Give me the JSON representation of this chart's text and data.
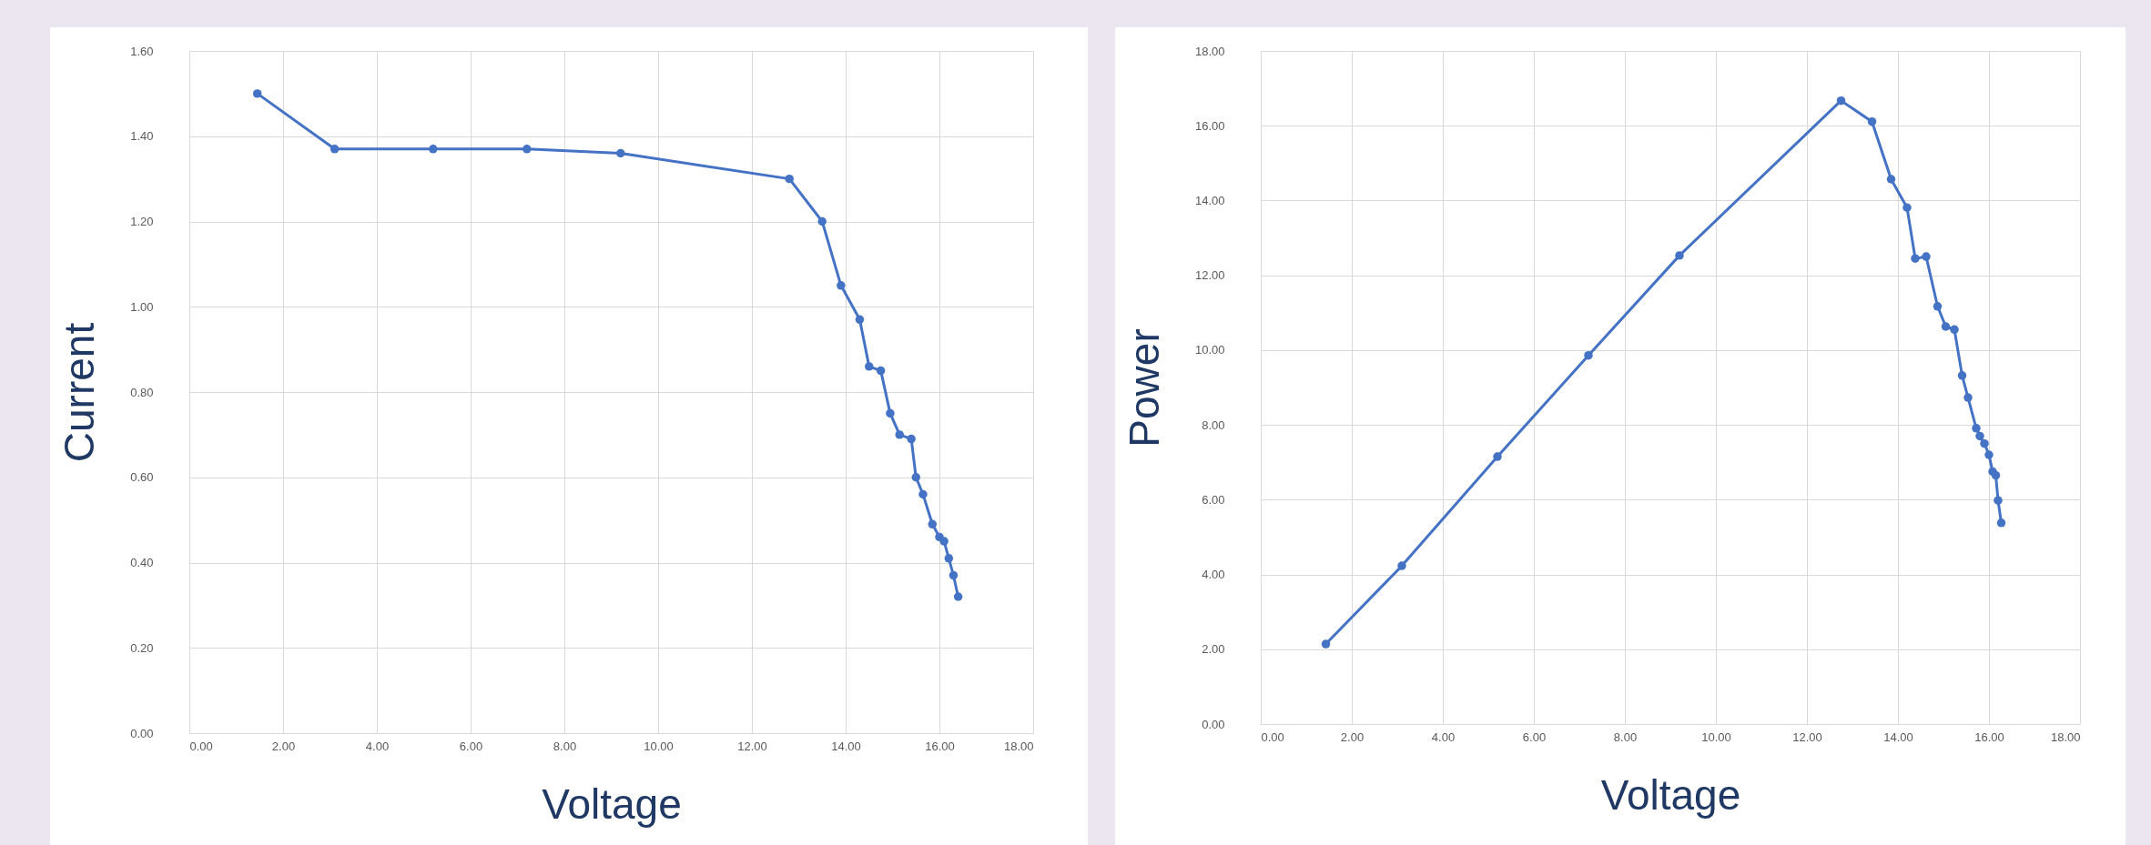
{
  "chart_data": [
    {
      "type": "line",
      "xlabel": "Voltage",
      "ylabel": "Current",
      "marker": "circle",
      "grid": true,
      "xlim": [
        0,
        18
      ],
      "ylim": [
        0,
        1.6
      ],
      "xticks": [
        {
          "value": 0,
          "label": "0.00"
        },
        {
          "value": 2,
          "label": "2.00"
        },
        {
          "value": 4,
          "label": "4.00"
        },
        {
          "value": 6,
          "label": "6.00"
        },
        {
          "value": 8,
          "label": "8.00"
        },
        {
          "value": 10,
          "label": "10.00"
        },
        {
          "value": 12,
          "label": "12.00"
        },
        {
          "value": 14,
          "label": "14.00"
        },
        {
          "value": 16,
          "label": "16.00"
        },
        {
          "value": 18,
          "label": "18.00"
        }
      ],
      "yticks": [
        {
          "value": 0,
          "label": "0.00"
        },
        {
          "value": 0.2,
          "label": "0.20"
        },
        {
          "value": 0.4,
          "label": "0.40"
        },
        {
          "value": 0.6,
          "label": "0.60"
        },
        {
          "value": 0.8,
          "label": "0.80"
        },
        {
          "value": 1,
          "label": "1.00"
        },
        {
          "value": 1.2,
          "label": "1.20"
        },
        {
          "value": 1.4,
          "label": "1.40"
        },
        {
          "value": 1.6,
          "label": "1.60"
        }
      ],
      "series": [
        {
          "color": "#4472c4",
          "x": [
            1.45,
            3.1,
            5.2,
            7.2,
            9.2,
            12.8,
            13.5,
            13.9,
            14.3,
            14.5,
            14.75,
            14.95,
            15.15,
            15.4,
            15.5,
            15.65,
            15.85,
            16.0,
            16.1,
            16.2,
            16.3,
            16.4
          ],
          "values": [
            1.5,
            1.37,
            1.37,
            1.37,
            1.36,
            1.3,
            1.2,
            1.05,
            0.97,
            0.86,
            0.85,
            0.75,
            0.7,
            0.69,
            0.6,
            0.56,
            0.49,
            0.46,
            0.45,
            0.41,
            0.37,
            0.32
          ]
        }
      ]
    },
    {
      "type": "line",
      "xlabel": "Voltage",
      "ylabel": "Power",
      "marker": "circle",
      "grid": true,
      "xlim": [
        0,
        18
      ],
      "ylim": [
        0,
        18
      ],
      "xticks": [
        {
          "value": 0,
          "label": "0.00"
        },
        {
          "value": 2,
          "label": "2.00"
        },
        {
          "value": 4,
          "label": "4.00"
        },
        {
          "value": 6,
          "label": "6.00"
        },
        {
          "value": 8,
          "label": "8.00"
        },
        {
          "value": 10,
          "label": "10.00"
        },
        {
          "value": 12,
          "label": "12.00"
        },
        {
          "value": 14,
          "label": "14.00"
        },
        {
          "value": 16,
          "label": "16.00"
        },
        {
          "value": 18,
          "label": "18.00"
        }
      ],
      "yticks": [
        {
          "value": 0,
          "label": "0.00"
        },
        {
          "value": 2,
          "label": "2.00"
        },
        {
          "value": 4,
          "label": "4.00"
        },
        {
          "value": 6,
          "label": "6.00"
        },
        {
          "value": 8,
          "label": "8.00"
        },
        {
          "value": 10,
          "label": "10.00"
        },
        {
          "value": 12,
          "label": "12.00"
        },
        {
          "value": 14,
          "label": "14.00"
        },
        {
          "value": 16,
          "label": "16.00"
        },
        {
          "value": 18,
          "label": "18.00"
        }
      ],
      "series": [
        {
          "color": "#4472c4",
          "x": [
            1.43,
            3.1,
            5.2,
            7.2,
            9.2,
            12.75,
            13.43,
            13.85,
            14.2,
            14.38,
            14.62,
            14.87,
            15.05,
            15.24,
            15.41,
            15.54,
            15.72,
            15.8,
            15.9,
            16.0,
            16.08,
            16.15,
            16.2,
            16.27
          ],
          "values": [
            2.14,
            4.23,
            7.15,
            9.86,
            12.53,
            16.67,
            16.11,
            14.57,
            13.81,
            12.45,
            12.5,
            11.17,
            10.63,
            10.55,
            9.32,
            8.73,
            7.91,
            7.7,
            7.5,
            7.2,
            6.75,
            6.65,
            5.98,
            5.38
          ]
        }
      ]
    }
  ]
}
